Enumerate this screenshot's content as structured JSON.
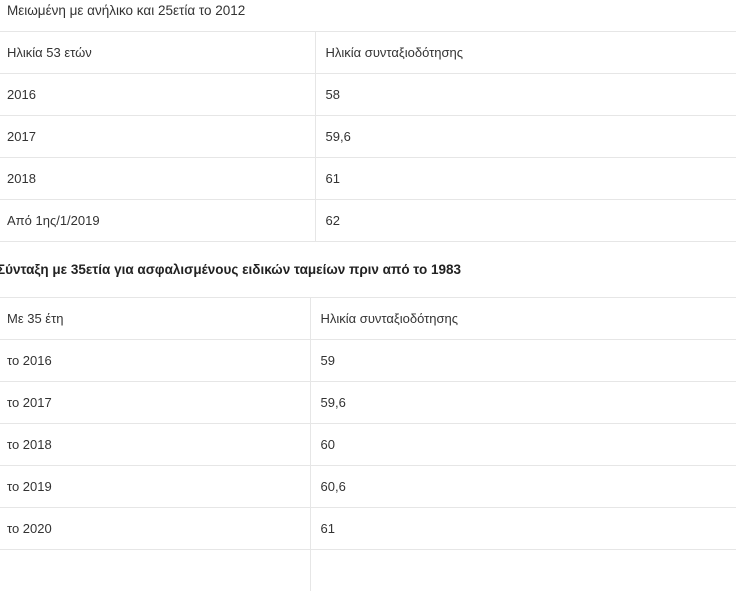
{
  "table1": {
    "caption": "Μειωμένη με ανήλικο και 25ετία το 2012",
    "header": [
      "Ηλικία 53 ετών",
      "Ηλικία συνταξιοδότησης"
    ],
    "rows": [
      [
        "2016",
        "58"
      ],
      [
        "2017",
        "59,6"
      ],
      [
        "2018",
        "61"
      ],
      [
        "Από 1ης/1/2019",
        "62"
      ]
    ]
  },
  "table2": {
    "heading": "Σύνταξη με 35ετία για ασφαλισμένους ειδικών ταμείων πριν από το 1983",
    "header": [
      "Με 35 έτη",
      "Ηλικία συνταξιοδότησης"
    ],
    "rows": [
      [
        "το 2016",
        "59"
      ],
      [
        "το 2017",
        "59,6"
      ],
      [
        "το 2018",
        "60"
      ],
      [
        "το 2019",
        "60,6"
      ],
      [
        "το 2020",
        "61"
      ]
    ]
  }
}
